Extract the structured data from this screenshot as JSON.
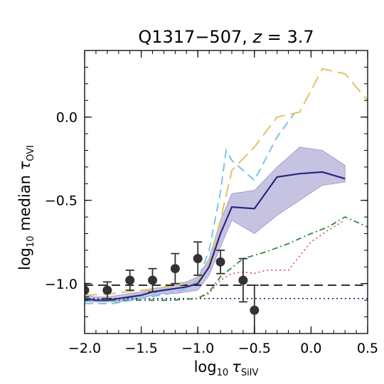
{
  "chart_data": {
    "type": "line",
    "title": {
      "main": "Q1317−507, ",
      "italic_z": "z",
      "rest": " = 3.7"
    },
    "xlabel": {
      "prefix": "log",
      "sub10": "10",
      "symbol": "τ",
      "subscript": "SiIV"
    },
    "ylabel": {
      "prefix": "log",
      "sub10": "10",
      "middle": " median ",
      "symbol": "τ",
      "subscript": "OVI"
    },
    "xlim": [
      -2.0,
      0.5
    ],
    "ylim": [
      -1.3,
      0.4
    ],
    "x_ticks": [
      -2.0,
      -1.5,
      -1.0,
      -0.5,
      0.0,
      0.5
    ],
    "x_tick_labels": [
      "−2.0",
      "−1.5",
      "−1.0",
      "−0.5",
      "0.0",
      "0.5"
    ],
    "y_ticks": [
      -1.0,
      -0.5,
      0.0
    ],
    "y_tick_labels": [
      "−1.0",
      "−0.5",
      "0.0"
    ],
    "grid": false,
    "colors": {
      "points": "#333333",
      "model": "#2b2680",
      "model_band": "#b7b4da",
      "dashed_gold": "#e0c267",
      "dashed_blue": "#7ac4e6",
      "dashdot_green": "#2e8b3a",
      "dotted_pink": "#d05a78",
      "ref_black": "#000000",
      "ref_navy": "#1a1a80"
    },
    "observed_points": {
      "x": [
        -2.0,
        -1.8,
        -1.6,
        -1.4,
        -1.2,
        -1.0,
        -0.8,
        -0.6,
        -0.5
      ],
      "y": [
        -1.04,
        -1.04,
        -0.98,
        -0.98,
        -0.91,
        -0.85,
        -0.87,
        -0.98,
        -1.16
      ],
      "yerr": [
        0.04,
        0.05,
        0.06,
        0.07,
        0.09,
        0.1,
        0.07,
        0.13,
        0.15
      ]
    },
    "model_median": {
      "x": [
        -2.0,
        -1.9,
        -1.8,
        -1.7,
        -1.6,
        -1.5,
        -1.4,
        -1.3,
        -1.2,
        -1.1,
        -1.0,
        -0.9,
        -0.8,
        -0.7,
        -0.5,
        -0.3,
        -0.1,
        0.1,
        0.3
      ],
      "y": [
        -1.09,
        -1.1,
        -1.1,
        -1.09,
        -1.08,
        -1.07,
        -1.05,
        -1.04,
        -1.03,
        -1.02,
        -1.0,
        -0.9,
        -0.7,
        -0.54,
        -0.55,
        -0.36,
        -0.34,
        -0.33,
        -0.37
      ],
      "band_low": [
        -1.11,
        -1.11,
        -1.11,
        -1.11,
        -1.1,
        -1.09,
        -1.07,
        -1.06,
        -1.06,
        -1.05,
        -1.04,
        -0.95,
        -0.78,
        -0.62,
        -0.7,
        -0.59,
        -0.5,
        -0.41,
        -0.39
      ],
      "band_high": [
        -1.07,
        -1.08,
        -1.08,
        -1.07,
        -1.06,
        -1.05,
        -1.03,
        -1.02,
        -1.0,
        -0.99,
        -0.96,
        -0.85,
        -0.62,
        -0.46,
        -0.44,
        -0.3,
        -0.18,
        -0.2,
        -0.29
      ]
    },
    "dashed_gold": {
      "x": [
        -2.0,
        -1.75,
        -1.5,
        -1.25,
        -1.1,
        -1.0,
        -0.9,
        -0.8,
        -0.7,
        -0.5,
        -0.3,
        -0.1,
        0.1,
        0.3,
        0.5
      ],
      "y": [
        -1.07,
        -1.06,
        -1.04,
        -1.02,
        -1.0,
        -0.98,
        -0.88,
        -0.62,
        -0.32,
        -0.18,
        0.0,
        0.03,
        0.29,
        0.26,
        0.1
      ]
    },
    "dashed_blue": {
      "x": [
        -2.0,
        -1.75,
        -1.5,
        -1.25,
        -1.1,
        -1.0,
        -0.9,
        -0.8,
        -0.75,
        -0.7,
        -0.5,
        -0.3,
        -0.15
      ],
      "y": [
        -1.12,
        -1.12,
        -1.09,
        -1.06,
        -1.03,
        -0.98,
        -0.8,
        -0.45,
        -0.2,
        -0.26,
        -0.38,
        -0.12,
        0.02
      ]
    },
    "dashdot_green": {
      "x": [
        -2.0,
        -1.75,
        -1.5,
        -1.25,
        -1.0,
        -0.9,
        -0.8,
        -0.6,
        -0.4,
        -0.2,
        0.0,
        0.15,
        0.3,
        0.5
      ],
      "y": [
        -1.1,
        -1.1,
        -1.1,
        -1.1,
        -1.09,
        -1.05,
        -0.96,
        -0.85,
        -0.81,
        -0.76,
        -0.7,
        -0.66,
        -0.6,
        -0.66
      ]
    },
    "dotted_pink": {
      "x": [
        -2.0,
        -1.75,
        -1.5,
        -1.25,
        -1.0,
        -0.9,
        -0.8,
        -0.7,
        -0.6,
        -0.5,
        -0.4,
        -0.2,
        0.0,
        0.15,
        0.3
      ],
      "y": [
        -1.1,
        -1.1,
        -1.1,
        -1.1,
        -1.09,
        -1.06,
        -0.98,
        -0.94,
        -0.93,
        -0.94,
        -0.92,
        -0.92,
        -0.75,
        -0.68,
        -0.62
      ]
    },
    "ref_dashed": {
      "y": -1.01
    },
    "ref_dotted": {
      "y": -1.09
    }
  }
}
